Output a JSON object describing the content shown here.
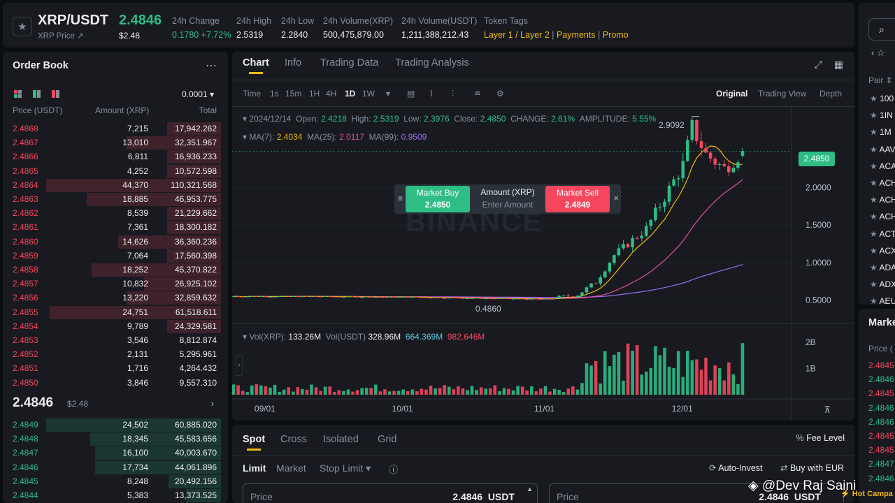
{
  "header": {
    "symbol": "XRP/USDT",
    "subtitle": "XRP Price ↗",
    "price": "2.4846",
    "price_usd": "$2.48",
    "stats": [
      {
        "label": "24h Change",
        "value": "0.1780 +7.72%"
      },
      {
        "label": "24h High",
        "value": "2.5319"
      },
      {
        "label": "24h Low",
        "value": "2.2840"
      },
      {
        "label": "24h Volume(XRP)",
        "value": "500,475,879.00"
      },
      {
        "label": "24h Volume(USDT)",
        "value": "1,211,388,212.43"
      }
    ],
    "tags_label": "Token Tags",
    "tags": [
      "Layer 1 / Layer 2",
      "Payments",
      "Promo"
    ]
  },
  "orderbook": {
    "title": "Order Book",
    "precision": "0.0001",
    "col_price": "Price (USDT)",
    "col_amount": "Amount (XRP)",
    "col_total": "Total",
    "asks": [
      {
        "price": "2.4868",
        "amount": "7,215",
        "total": "17,942.262",
        "depth": 0.31
      },
      {
        "price": "2.4867",
        "amount": "13,010",
        "total": "32,351.967",
        "depth": 0.54
      },
      {
        "price": "2.4866",
        "amount": "6,811",
        "total": "16,936.233",
        "depth": 0.31
      },
      {
        "price": "2.4865",
        "amount": "4,252",
        "total": "10,572.598",
        "depth": 0.31
      },
      {
        "price": "2.4864",
        "amount": "44,370",
        "total": "110,321.568",
        "depth": 1.0
      },
      {
        "price": "2.4863",
        "amount": "18,885",
        "total": "46,953.775",
        "depth": 0.77
      },
      {
        "price": "2.4862",
        "amount": "8,539",
        "total": "21,229.662",
        "depth": 0.31
      },
      {
        "price": "2.4861",
        "amount": "7,361",
        "total": "18,300.182",
        "depth": 0.31
      },
      {
        "price": "2.4860",
        "amount": "14,626",
        "total": "36,360.236",
        "depth": 0.59
      },
      {
        "price": "2.4859",
        "amount": "7,064",
        "total": "17,560.398",
        "depth": 0.31
      },
      {
        "price": "2.4858",
        "amount": "18,252",
        "total": "45,370.822",
        "depth": 0.74
      },
      {
        "price": "2.4857",
        "amount": "10,832",
        "total": "26,925.102",
        "depth": 0.44
      },
      {
        "price": "2.4856",
        "amount": "13,220",
        "total": "32,859.632",
        "depth": 0.54
      },
      {
        "price": "2.4855",
        "amount": "24,751",
        "total": "61,518.611",
        "depth": 0.98
      },
      {
        "price": "2.4854",
        "amount": "9,789",
        "total": "24,329.581",
        "depth": 0.31
      },
      {
        "price": "2.4853",
        "amount": "3,546",
        "total": "8,812.874",
        "depth": 0
      },
      {
        "price": "2.4852",
        "amount": "2,131",
        "total": "5,295.961",
        "depth": 0
      },
      {
        "price": "2.4851",
        "amount": "1,716",
        "total": "4,264.432",
        "depth": 0
      },
      {
        "price": "2.4850",
        "amount": "3,846",
        "total": "9,557.310",
        "depth": 0
      }
    ],
    "mid_price": "2.4846",
    "mid_usd": "$2.48",
    "bids": [
      {
        "price": "2.4849",
        "amount": "24,502",
        "total": "60,885.020",
        "depth": 1.0
      },
      {
        "price": "2.4848",
        "amount": "18,345",
        "total": "45,583.656",
        "depth": 0.75
      },
      {
        "price": "2.4847",
        "amount": "16,100",
        "total": "40,003.670",
        "depth": 0.72
      },
      {
        "price": "2.4846",
        "amount": "17,734",
        "total": "44,061.896",
        "depth": 0.72
      },
      {
        "price": "2.4845",
        "amount": "8,248",
        "total": "20,492.156",
        "depth": 0.3
      },
      {
        "price": "2.4844",
        "amount": "5,383",
        "total": "13,373.525",
        "depth": 0.2
      }
    ]
  },
  "chart": {
    "tabs": [
      "Chart",
      "Info",
      "Trading Data",
      "Trading Analysis"
    ],
    "timeframes": [
      "Time",
      "1s",
      "15m",
      "1H",
      "4H",
      "1D",
      "1W"
    ],
    "active_timeframe": "1D",
    "views": [
      "Original",
      "Trading View",
      "Depth"
    ],
    "ohlc": {
      "date": "2024/12/14",
      "open_label": "Open:",
      "open": "2.4218",
      "high_label": "High:",
      "high": "2.5319",
      "low_label": "Low:",
      "low": "2.3976",
      "close_label": "Close:",
      "close": "2.4850",
      "change_label": "CHANGE:",
      "change": "2.61%",
      "amp_label": "AMPLITUDE:",
      "amp": "5.55%"
    },
    "ma": {
      "ma7_label": "MA(7):",
      "ma7": "2.4034",
      "ma25_label": "MA(25):",
      "ma25": "2.0117",
      "ma99_label": "MA(99):",
      "ma99": "0.9509"
    },
    "vol": {
      "xrp_label": "Vol(XRP):",
      "xrp": "133.26M",
      "usdt_label": "Vol(USDT)",
      "usdt": "328.96M",
      "v1": "664.369M",
      "v2": "982.646M"
    },
    "price_ticks": [
      "2.0000",
      "1.5000",
      "1.0000",
      "0.5000"
    ],
    "vol_ticks": [
      "2B",
      "1B"
    ],
    "date_ticks": [
      "09/01",
      "10/01",
      "11/01",
      "12/01"
    ],
    "last_price": "2.4850",
    "high_mark": "2.9092",
    "low_mark": "0.4860",
    "watermark": "BINANCE",
    "quick_trade": {
      "buy_label": "Market Buy",
      "buy_price": "2.4850",
      "amount_label": "Amount (XRP)",
      "amount_placeholder": "Enter Amount",
      "sell_label": "Market Sell",
      "sell_price": "2.4849"
    },
    "colors": {
      "up": "#2ebd85",
      "down": "#f6465d",
      "ma7": "#f0b90b",
      "ma25": "#e04f9d",
      "ma99": "#9b6cf0"
    }
  },
  "chart_data": {
    "type": "candlestick",
    "x_range": [
      "2024/08/25",
      "2024/12/14"
    ],
    "ylim": [
      0.3,
      3.0
    ],
    "anchors": [
      {
        "date": "2024/09/01",
        "close": 0.55
      },
      {
        "date": "2024/10/01",
        "close": 0.54
      },
      {
        "date": "2024/11/01",
        "close": 0.51
      },
      {
        "date": "2024/11/08",
        "close": 0.57
      },
      {
        "date": "2024/11/12",
        "close": 0.74
      },
      {
        "date": "2024/11/16",
        "close": 1.1
      },
      {
        "date": "2024/11/23",
        "close": 1.45
      },
      {
        "date": "2024/12/01",
        "close": 2.3
      },
      {
        "date": "2024/12/03",
        "close": 2.8
      },
      {
        "date": "2024/12/06",
        "close": 2.44
      },
      {
        "date": "2024/12/10",
        "close": 2.25
      },
      {
        "date": "2024/12/14",
        "close": 2.485
      }
    ],
    "last_candle": {
      "open": 2.4218,
      "high": 2.5319,
      "low": 2.3976,
      "close": 2.485
    },
    "ma": {
      "ma7": 2.4034,
      "ma25": 2.0117,
      "ma99": 0.9509
    },
    "volume_ylim": [
      0,
      2500000000
    ]
  },
  "order_form": {
    "tabs": [
      "Spot",
      "Cross",
      "Isolated",
      "Grid"
    ],
    "fee_level": "Fee Level",
    "types": [
      "Limit",
      "Market",
      "Stop Limit"
    ],
    "auto_invest": "Auto-Invest",
    "buy_with": "Buy with EUR",
    "price_label": "Price",
    "price_value": "2.4846",
    "currency": "USDT",
    "price_value2": "2.4846"
  },
  "right_panel": {
    "pair_label": "Pair",
    "pairs": [
      "100",
      "1IN",
      "1M",
      "AAV",
      "ACA",
      "ACH",
      "ACH",
      "ACH",
      "ACT",
      "ACX",
      "ADA",
      "ADX",
      "AEU"
    ],
    "market_title": "Marke",
    "price_label": "Price (",
    "trades": [
      {
        "v": "2.4845",
        "c": "red"
      },
      {
        "v": "2.4846",
        "c": "green"
      },
      {
        "v": "2.4845",
        "c": "red"
      },
      {
        "v": "2.4846",
        "c": "green"
      },
      {
        "v": "2.4846",
        "c": "green"
      },
      {
        "v": "2.4845",
        "c": "red"
      },
      {
        "v": "2.4845",
        "c": "red"
      },
      {
        "v": "2.4847",
        "c": "green"
      },
      {
        "v": "2.4846",
        "c": "green"
      }
    ],
    "promo": "Hot Campa"
  },
  "credit": "@Dev Raj Saini"
}
